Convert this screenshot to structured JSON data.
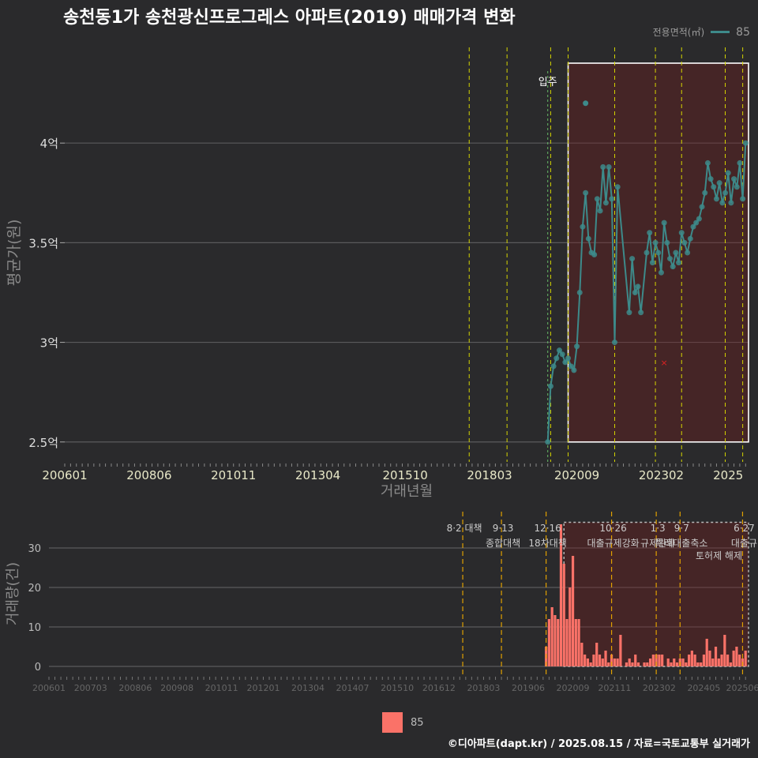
{
  "title": "송천동1가 송천광신프로그레스 아파트(2019) 매매가격 변화",
  "legend_top": {
    "title": "전용면적(㎡)",
    "value": "85",
    "color": "#3d8a8a"
  },
  "legend_bottom": {
    "value": "85",
    "color": "#fa7268"
  },
  "footer": "©디아파트(dapt.kr) / 2025.08.15 / 자료=국토교통부 실거래가",
  "chart_data": [
    {
      "type": "line",
      "title": "송천동1가 송천광신프로그레스 아파트(2019) 매매가격 변화",
      "xlabel": "거래년월",
      "ylabel": "평균가(원)",
      "x_start": "200601",
      "x_end": "202508",
      "ylim": [
        2.4,
        4.5
      ],
      "y_unit": "억",
      "yticks": [
        2.5,
        3.0,
        3.5,
        4.0
      ],
      "ytick_labels": [
        "2.5억",
        "3억",
        "3.5억",
        "4억"
      ],
      "xtick_labels": [
        "200601",
        "200806",
        "201011",
        "201304",
        "201510",
        "201803",
        "202009",
        "202302",
        "2025"
      ],
      "series_name": "85",
      "series_color": "#3d8a8a",
      "annotation": "입주",
      "highlight_from": "202006",
      "highlight_to": "202508",
      "policy_lines": [
        "2017-08",
        "2018-09",
        "2019-12",
        "2020-06",
        "2021-10",
        "2022-12",
        "2023-09",
        "2024-12",
        "2025-06"
      ],
      "points": [
        [
          "2019-11",
          2.5
        ],
        [
          "2019-12",
          2.78
        ],
        [
          "2020-01",
          2.88
        ],
        [
          "2020-02",
          2.92
        ],
        [
          "2020-03",
          2.96
        ],
        [
          "2020-04",
          2.94
        ],
        [
          "2020-05",
          2.9
        ],
        [
          "2020-06",
          2.92
        ],
        [
          "2020-07",
          2.88
        ],
        [
          "2020-08",
          2.86
        ],
        [
          "2020-09",
          2.98
        ],
        [
          "2020-10",
          3.25
        ],
        [
          "2020-11",
          3.58
        ],
        [
          "2020-12",
          3.75
        ],
        [
          "2021-01",
          3.52
        ],
        [
          "2021-02",
          3.45
        ],
        [
          "2021-03",
          3.44
        ],
        [
          "2021-04",
          3.72
        ],
        [
          "2021-05",
          3.66
        ],
        [
          "2021-06",
          3.88
        ],
        [
          "2021-07",
          3.7
        ],
        [
          "2021-08",
          3.88
        ],
        [
          "2021-09",
          3.72
        ],
        [
          "2021-10",
          3.0
        ],
        [
          "2021-11",
          3.78
        ],
        [
          "2022-03",
          3.15
        ],
        [
          "2022-04",
          3.42
        ],
        [
          "2022-05",
          3.25
        ],
        [
          "2022-06",
          3.28
        ],
        [
          "2022-07",
          3.15
        ],
        [
          "2022-09",
          3.45
        ],
        [
          "2022-10",
          3.55
        ],
        [
          "2022-11",
          3.4
        ],
        [
          "2022-12",
          3.5
        ],
        [
          "2023-01",
          3.45
        ],
        [
          "2023-02",
          3.35
        ],
        [
          "2023-03",
          3.6
        ],
        [
          "2023-04",
          3.5
        ],
        [
          "2023-05",
          3.42
        ],
        [
          "2023-06",
          3.38
        ],
        [
          "2023-07",
          3.45
        ],
        [
          "2023-08",
          3.4
        ],
        [
          "2023-09",
          3.55
        ],
        [
          "2023-10",
          3.5
        ],
        [
          "2023-11",
          3.45
        ],
        [
          "2023-12",
          3.52
        ],
        [
          "2024-01",
          3.58
        ],
        [
          "2024-02",
          3.6
        ],
        [
          "2024-03",
          3.62
        ],
        [
          "2024-04",
          3.68
        ],
        [
          "2024-05",
          3.75
        ],
        [
          "2024-06",
          3.9
        ],
        [
          "2024-07",
          3.82
        ],
        [
          "2024-08",
          3.78
        ],
        [
          "2024-09",
          3.72
        ],
        [
          "2024-10",
          3.8
        ],
        [
          "2024-11",
          3.7
        ],
        [
          "2024-12",
          3.75
        ],
        [
          "2025-01",
          3.85
        ],
        [
          "2025-02",
          3.7
        ],
        [
          "2025-03",
          3.82
        ],
        [
          "2025-04",
          3.78
        ],
        [
          "2025-05",
          3.9
        ],
        [
          "2025-06",
          3.72
        ],
        [
          "2025-07",
          4.0
        ]
      ],
      "outliers": [
        [
          "2020-12",
          4.2
        ],
        [
          "2023-03",
          2.9
        ]
      ]
    },
    {
      "type": "bar",
      "ylabel": "거래량(건)",
      "series_name": "85",
      "series_color": "#fa7268",
      "ylim": [
        -2,
        38
      ],
      "yticks": [
        0,
        10,
        20,
        30
      ],
      "xtick_labels": [
        "200601",
        "200703",
        "200806",
        "200908",
        "201011",
        "201201",
        "201304",
        "201407",
        "201510",
        "201612",
        "201803",
        "201906",
        "202009",
        "202111",
        "202302",
        "202405",
        "202506"
      ],
      "policies": [
        {
          "month": "2017-08",
          "label1": "8·2 대책",
          "label2": ""
        },
        {
          "month": "2018-09",
          "label1": "9·13",
          "label2": "종합대책"
        },
        {
          "month": "2019-12",
          "label1": "12·16",
          "label2": "18차대책"
        },
        {
          "month": "2021-10",
          "label1": "10·26",
          "label2": "대출규제강화"
        },
        {
          "month": "2023-01",
          "label1": "1·3",
          "label2": "규제완화"
        },
        {
          "month": "2023-09",
          "label1": "9·7",
          "label2": "특례대출축소"
        },
        {
          "month": "2025-06",
          "label1": "6·27",
          "label2": "대출규"
        }
      ],
      "policy_extra": "토허제 해제",
      "volumes": [
        [
          "2019-12",
          5
        ],
        [
          "2020-01",
          12
        ],
        [
          "2020-02",
          15
        ],
        [
          "2020-03",
          13
        ],
        [
          "2020-04",
          12
        ],
        [
          "2020-05",
          36
        ],
        [
          "2020-06",
          26
        ],
        [
          "2020-07",
          12
        ],
        [
          "2020-08",
          20
        ],
        [
          "2020-09",
          28
        ],
        [
          "2020-10",
          12
        ],
        [
          "2020-11",
          12
        ],
        [
          "2020-12",
          6
        ],
        [
          "2021-01",
          3
        ],
        [
          "2021-02",
          2
        ],
        [
          "2021-03",
          1
        ],
        [
          "2021-04",
          3
        ],
        [
          "2021-05",
          6
        ],
        [
          "2021-06",
          3
        ],
        [
          "2021-07",
          2
        ],
        [
          "2021-08",
          4
        ],
        [
          "2021-09",
          1
        ],
        [
          "2021-10",
          3
        ],
        [
          "2021-11",
          2
        ],
        [
          "2021-12",
          2
        ],
        [
          "2022-01",
          8
        ],
        [
          "2022-03",
          1
        ],
        [
          "2022-04",
          2
        ],
        [
          "2022-05",
          1
        ],
        [
          "2022-06",
          3
        ],
        [
          "2022-07",
          1
        ],
        [
          "2022-09",
          1
        ],
        [
          "2022-10",
          1
        ],
        [
          "2022-11",
          2
        ],
        [
          "2022-12",
          3
        ],
        [
          "2023-01",
          3
        ],
        [
          "2023-02",
          3
        ],
        [
          "2023-03",
          3
        ],
        [
          "2023-05",
          2
        ],
        [
          "2023-06",
          1
        ],
        [
          "2023-07",
          2
        ],
        [
          "2023-08",
          1
        ],
        [
          "2023-09",
          2
        ],
        [
          "2023-10",
          2
        ],
        [
          "2023-11",
          1
        ],
        [
          "2023-12",
          3
        ],
        [
          "2024-01",
          4
        ],
        [
          "2024-02",
          3
        ],
        [
          "2024-03",
          1
        ],
        [
          "2024-04",
          1
        ],
        [
          "2024-05",
          3
        ],
        [
          "2024-06",
          7
        ],
        [
          "2024-07",
          4
        ],
        [
          "2024-08",
          2
        ],
        [
          "2024-09",
          5
        ],
        [
          "2024-10",
          2
        ],
        [
          "2024-11",
          3
        ],
        [
          "2024-12",
          8
        ],
        [
          "2025-01",
          3
        ],
        [
          "2025-02",
          1
        ],
        [
          "2025-03",
          4
        ],
        [
          "2025-04",
          5
        ],
        [
          "2025-05",
          3
        ],
        [
          "2025-06",
          2
        ],
        [
          "2025-07",
          4
        ]
      ]
    }
  ]
}
